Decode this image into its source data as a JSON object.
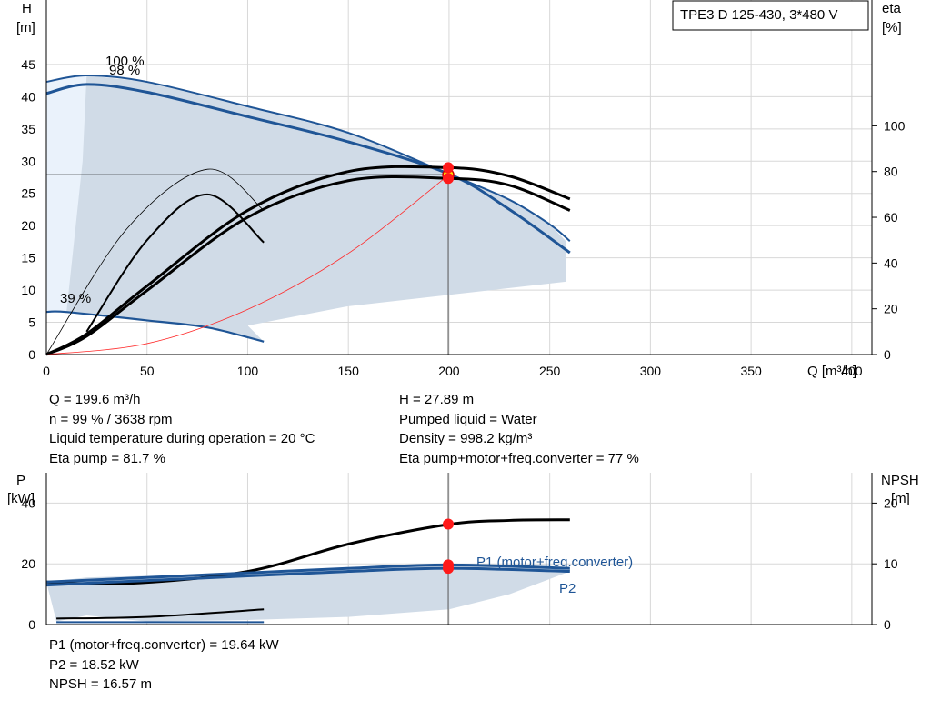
{
  "chart_data": [
    {
      "type": "line",
      "title": "TPE3 D 125-430, 3*480 V",
      "xlabel": "Q [m³/h]",
      "ylabel": "H\n[m]",
      "y2label": "eta\n[%]",
      "xlim": [
        0,
        410
      ],
      "ylim": [
        0,
        55
      ],
      "y2lim": [
        0,
        155
      ],
      "xticks": [
        0,
        50,
        100,
        150,
        200,
        250,
        300,
        350,
        400
      ],
      "yticks": [
        0,
        5,
        10,
        15,
        20,
        25,
        30,
        35,
        40,
        45
      ],
      "y2ticks": [
        0,
        20,
        40,
        60,
        80,
        100
      ],
      "grid": true,
      "curve_labels": [
        "100 %",
        "98 %",
        "39 %"
      ],
      "series": [
        {
          "name": "H 100 %",
          "color": "#1f5596",
          "x": [
            0,
            20,
            50,
            100,
            150,
            200,
            230,
            250,
            260
          ],
          "y": [
            42.3,
            43.3,
            42.3,
            38.5,
            34.4,
            28.0,
            24.0,
            20.2,
            17.6
          ]
        },
        {
          "name": "H 98 %",
          "color": "#1f5596",
          "x": [
            0,
            20,
            50,
            100,
            150,
            200,
            230,
            260
          ],
          "y": [
            40.5,
            41.9,
            40.7,
            36.9,
            33.0,
            28.0,
            22.5,
            15.8
          ]
        },
        {
          "name": "H 39 %",
          "color": "#1f5596",
          "x": [
            0,
            10,
            50,
            80,
            108
          ],
          "y": [
            6.6,
            6.6,
            5.3,
            4.2,
            2.0
          ]
        },
        {
          "name": "eta pump+motor+freq.converter",
          "color": "#000000",
          "x": [
            0,
            20,
            50,
            100,
            150,
            200,
            230,
            260
          ],
          "y": [
            0,
            8,
            28,
            60,
            76,
            77,
            74,
            63
          ]
        },
        {
          "name": "eta pump",
          "color": "#000000",
          "x": [
            0,
            20,
            50,
            100,
            150,
            200,
            230,
            260
          ],
          "y": [
            0,
            9,
            30,
            63,
            80,
            81.7,
            78,
            68
          ]
        },
        {
          "name": "system curve",
          "color": "#ff2a2a",
          "x": [
            0,
            50,
            100,
            150,
            200
          ],
          "y": [
            0,
            1.7,
            7.0,
            15.7,
            27.89
          ]
        }
      ],
      "envelope": {
        "x": [
          0,
          20,
          50,
          100,
          150,
          200,
          230,
          250,
          258,
          258,
          150,
          100,
          108,
          80,
          40,
          10,
          0
        ],
        "y": [
          42.3,
          43.3,
          42.3,
          38.5,
          34.4,
          28.0,
          24.0,
          20.2,
          17.6,
          11.3,
          7.5,
          4.5,
          2.0,
          4.2,
          5.8,
          6.6,
          6.6
        ]
      },
      "duty_point": {
        "x": 199.6,
        "y": 27.89,
        "eta": [
          81.7,
          77
        ],
        "color": "#ffe600"
      }
    },
    {
      "type": "line",
      "xlabel": "",
      "ylabel": "P\n[kW]",
      "y2label": "NPSH\n[m]",
      "xlim": [
        0,
        410
      ],
      "ylim": [
        0,
        50
      ],
      "y2lim": [
        0,
        25
      ],
      "yticks": [
        0,
        20,
        40
      ],
      "y2ticks": [
        0,
        10,
        20
      ],
      "grid": true,
      "series": [
        {
          "name": "NPSH",
          "color": "#000000",
          "x": [
            0,
            40,
            100,
            150,
            200,
            230,
            260
          ],
          "y": [
            14.0,
            13.5,
            17.5,
            26.5,
            33.0,
            34.3,
            34.5
          ]
        },
        {
          "name": "P1 (motor+freq.converter)",
          "color": "#1f5596",
          "x": [
            0,
            50,
            100,
            150,
            200,
            260
          ],
          "y": [
            14.0,
            15.5,
            17.0,
            18.5,
            19.64,
            18.5
          ]
        },
        {
          "name": "P2",
          "color": "#1f5596",
          "x": [
            0,
            50,
            100,
            150,
            200,
            260
          ],
          "y": [
            13.0,
            14.5,
            16.0,
            17.5,
            18.52,
            17.5
          ]
        },
        {
          "name": "NPSH 39 %",
          "color": "#000000",
          "x": [
            5,
            50,
            108
          ],
          "y": [
            2.0,
            2.5,
            5.0
          ]
        }
      ],
      "envelope": {
        "x": [
          0,
          20,
          100,
          150,
          200,
          260,
          260,
          230,
          200,
          150,
          100,
          50,
          20,
          5
        ],
        "y": [
          14.0,
          15.5,
          17.0,
          18.5,
          19.64,
          18.5,
          17.5,
          10.0,
          5.0,
          2.5,
          1.5,
          1.0,
          3.0,
          1.0
        ]
      },
      "duty_points": [
        {
          "x": 199.6,
          "y": 33.1
        },
        {
          "x": 199.6,
          "y": 19.64
        },
        {
          "x": 199.6,
          "y": 18.52
        }
      ],
      "series_labels": [
        "P1 (motor+freq.converter)",
        "P2"
      ]
    }
  ],
  "info_top": {
    "left": [
      "Q = 199.6 m³/h",
      "n = 99 % / 3638 rpm",
      "Liquid temperature during operation = 20 °C",
      "Eta pump = 81.7 %"
    ],
    "right": [
      "H = 27.89 m",
      "Pumped liquid = Water",
      "Density = 998.2 kg/m³",
      "Eta pump+motor+freq.converter = 77 %"
    ]
  },
  "info_bottom": [
    "P1 (motor+freq.converter) = 19.64 kW",
    "P2 = 18.52 kW",
    "NPSH = 16.57 m"
  ]
}
